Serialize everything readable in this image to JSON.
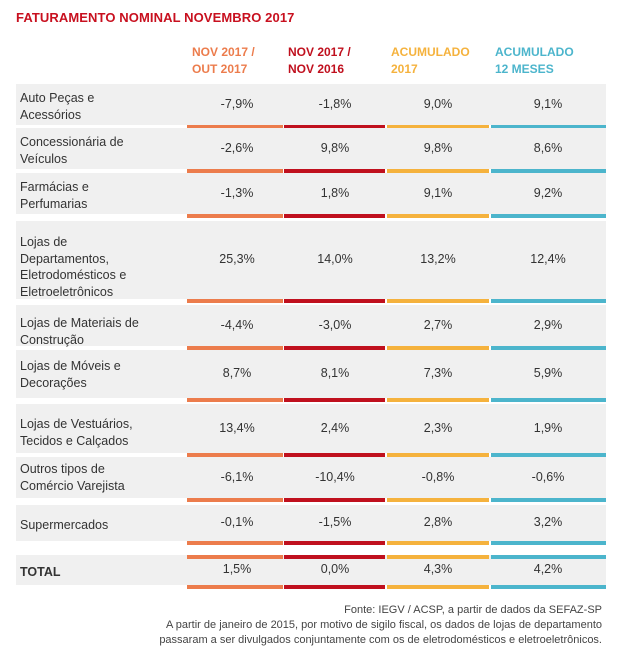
{
  "title": "FATURAMENTO NOMINAL NOVEMBRO 2017",
  "colors": {
    "title": "#c8101f",
    "col1": "#ec7c4c",
    "col2": "#c0101e",
    "col3": "#f5b23d",
    "col4": "#4cb5cc"
  },
  "chart_data": {
    "type": "table",
    "title": "FATURAMENTO NOMINAL NOVEMBRO 2017",
    "columns": [
      "NOV 2017 /\nOUT 2017",
      "NOV 2017 /\nNOV 2016",
      "ACUMULADO\n2017",
      "ACUMULADO\n12 MESES"
    ],
    "rows": [
      {
        "label": "Auto Peças e\nAcessórios",
        "values": [
          "-7,9%",
          "-1,8%",
          "9,0%",
          "9,1%"
        ]
      },
      {
        "label": "Concessionária de\nVeículos",
        "values": [
          "-2,6%",
          "9,8%",
          "9,8%",
          "8,6%"
        ]
      },
      {
        "label": "Farmácias e\nPerfumarias",
        "values": [
          "-1,3%",
          "1,8%",
          "9,1%",
          "9,2%"
        ]
      },
      {
        "label": "Lojas de\nDepartamentos,\nEletrodomésticos e\nEletroeletrônicos",
        "values": [
          "25,3%",
          "14,0%",
          "13,2%",
          "12,4%"
        ]
      },
      {
        "label": "Lojas de Materiais de\nConstrução",
        "values": [
          "-4,4%",
          "-3,0%",
          "2,7%",
          "2,9%"
        ]
      },
      {
        "label": "Lojas de Móveis e\nDecorações",
        "values": [
          "8,7%",
          "8,1%",
          "7,3%",
          "5,9%"
        ]
      },
      {
        "label": "Lojas de Vestuários,\nTecidos e Calçados",
        "values": [
          "13,4%",
          "2,4%",
          "2,3%",
          "1,9%"
        ]
      },
      {
        "label": "Outros tipos de\nComércio Varejista",
        "values": [
          "-6,1%",
          "-10,4%",
          "-0,8%",
          "-0,6%"
        ]
      },
      {
        "label": "Supermercados",
        "values": [
          "-0,1%",
          "-1,5%",
          "2,8%",
          "3,2%"
        ]
      }
    ],
    "total": {
      "label": "TOTAL",
      "values": [
        "1,5%",
        "0,0%",
        "4,3%",
        "4,2%"
      ]
    }
  },
  "footer": {
    "line1": "Fonte: IEGV / ACSP, a partir de dados da SEFAZ-SP",
    "line2": "A partir de janeiro de 2015, por motivo de sigilo fiscal, os dados de lojas de departamento",
    "line3": "passaram a ser divulgados conjuntamente com os de eletrodomésticos e eletroeletrônicos."
  }
}
